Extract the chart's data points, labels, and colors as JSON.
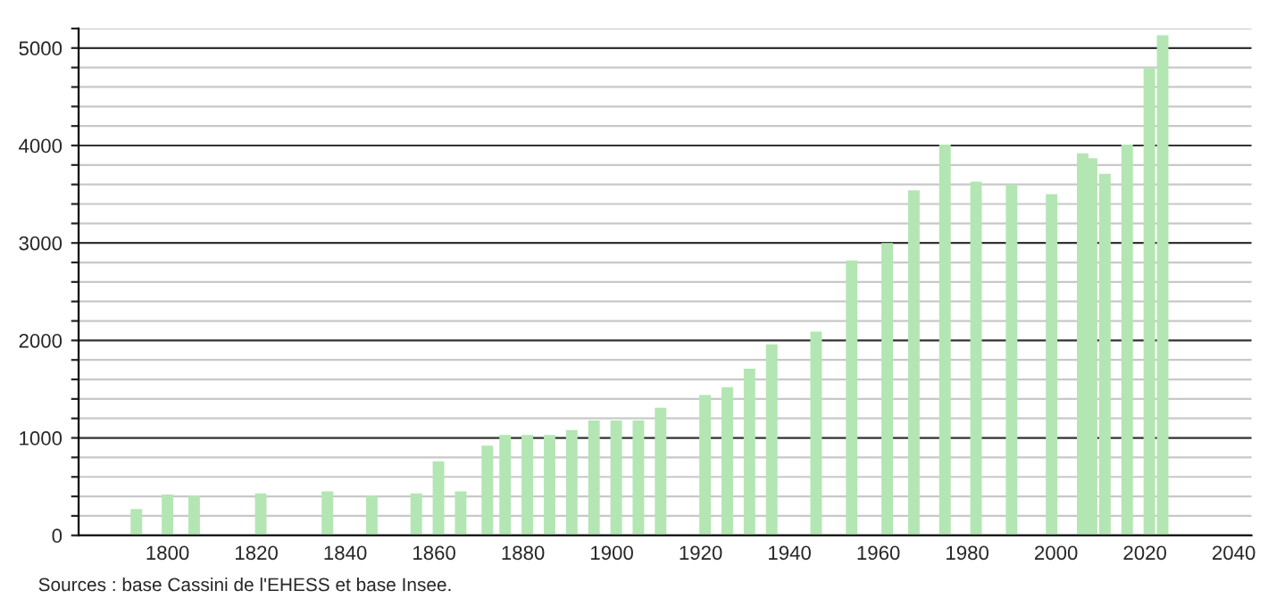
{
  "chart_data": {
    "type": "bar",
    "x": [
      1793,
      1800,
      1806,
      1821,
      1836,
      1846,
      1856,
      1861,
      1866,
      1872,
      1876,
      1881,
      1886,
      1891,
      1896,
      1901,
      1906,
      1911,
      1921,
      1926,
      1931,
      1936,
      1946,
      1954,
      1962,
      1968,
      1975,
      1982,
      1990,
      1999,
      2006,
      2008,
      2011,
      2016,
      2021,
      2024
    ],
    "values": [
      270,
      420,
      410,
      430,
      450,
      410,
      430,
      760,
      450,
      920,
      1030,
      1030,
      1030,
      1080,
      1180,
      1180,
      1180,
      1310,
      1440,
      1520,
      1710,
      1960,
      2090,
      2820,
      3000,
      3540,
      4010,
      3630,
      3600,
      3500,
      3920,
      3870,
      3710,
      4010,
      4800,
      5130
    ],
    "color": "#b3e6b3",
    "xlim": [
      1780,
      2044
    ],
    "xticks": [
      1800,
      1820,
      1840,
      1860,
      1880,
      1900,
      1920,
      1940,
      1960,
      1980,
      2000,
      2020,
      2040
    ],
    "ylim": [
      0,
      5200
    ],
    "yticks": [
      0,
      {
        "value": 200,
        "label": null
      },
      {
        "value": 400,
        "label": null
      },
      {
        "value": 600,
        "label": null
      },
      {
        "value": 800,
        "label": null
      },
      1000,
      {
        "value": 1200,
        "label": null
      },
      {
        "value": 1400,
        "label": null
      },
      {
        "value": 1600,
        "label": null
      },
      {
        "value": 1800,
        "label": null
      },
      2000,
      {
        "value": 2200,
        "label": null
      },
      {
        "value": 2400,
        "label": null
      },
      {
        "value": 2600,
        "label": null
      },
      {
        "value": 2800,
        "label": null
      },
      3000,
      {
        "value": 3200,
        "label": null
      },
      {
        "value": 3400,
        "label": null
      },
      {
        "value": 3600,
        "label": null
      },
      {
        "value": 3800,
        "label": null
      },
      4000,
      {
        "value": 4200,
        "label": null
      },
      {
        "value": 4400,
        "label": null
      },
      {
        "value": 4600,
        "label": null
      },
      {
        "value": 4800,
        "label": null
      },
      5000,
      {
        "value": 5200,
        "label": null
      }
    ],
    "grid": "y",
    "annotations": [
      "Sources : base Cassini de l'EHESS et base Insee."
    ]
  }
}
